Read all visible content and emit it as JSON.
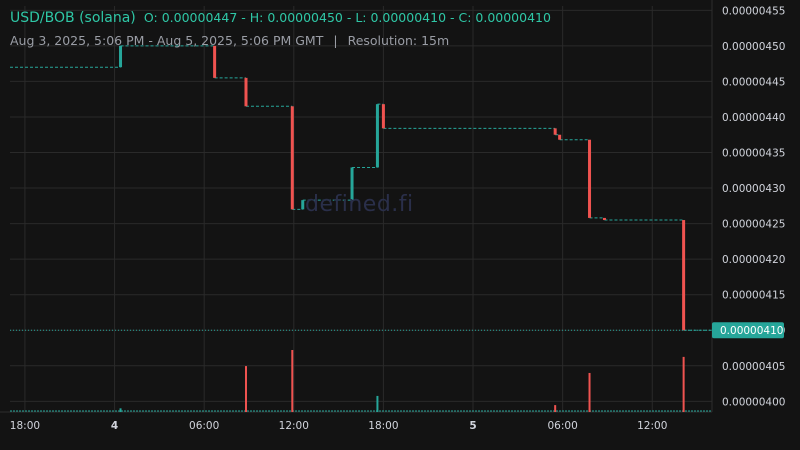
{
  "header": {
    "pair": "USD/BOB (solana)",
    "ohlc": "O: 0.00000447 - H: 0.00000450 - L: 0.00000410 - C: 0.00000410",
    "range": "Aug 3, 2025, 5:06 PM - Aug 5, 2025, 5:06 PM GMT",
    "separator": "|",
    "resolution": "Resolution: 15m"
  },
  "watermark": "defined.fi",
  "colors": {
    "background": "#131313",
    "grid": "#2a2a2a",
    "up": "#26a69a",
    "down": "#ef5350",
    "price_line": "#26a69a",
    "price_label_bg": "#26a69a",
    "axis_text": "#d1d4dc"
  },
  "chart_data": {
    "type": "candlestick",
    "x_ticks": [
      {
        "label": "18:00",
        "hour": 0,
        "bold": false
      },
      {
        "label": "4",
        "hour": 6,
        "bold": true
      },
      {
        "label": "06:00",
        "hour": 12,
        "bold": false
      },
      {
        "label": "12:00",
        "hour": 18,
        "bold": false
      },
      {
        "label": "18:00",
        "hour": 24,
        "bold": false
      },
      {
        "label": "5",
        "hour": 30,
        "bold": true
      },
      {
        "label": "06:00",
        "hour": 36,
        "bold": false
      },
      {
        "label": "12:00",
        "hour": 42,
        "bold": false
      }
    ],
    "x_range_hours": [
      -1,
      46
    ],
    "y_ticks": [
      "0.00000400",
      "0.00000405",
      "0.00000410",
      "0.00000415",
      "0.00000420",
      "0.00000425",
      "0.00000430",
      "0.00000435",
      "0.00000440",
      "0.00000445",
      "0.00000450",
      "0.00000455"
    ],
    "y_range": [
      3.985e-06,
      4.5575e-06
    ],
    "last_price": 4.1e-06,
    "last_price_label": "0.00000410",
    "steps": [
      {
        "h": -1.0,
        "open": 4.47e-06,
        "close": 4.47e-06
      },
      {
        "h": 6.4,
        "open": 4.47e-06,
        "close": 4.5e-06
      },
      {
        "h": 12.7,
        "open": 4.5e-06,
        "close": 4.455e-06
      },
      {
        "h": 14.8,
        "open": 4.455e-06,
        "close": 4.415e-06
      },
      {
        "h": 17.9,
        "open": 4.415e-06,
        "close": 4.27e-06
      },
      {
        "h": 18.6,
        "open": 4.27e-06,
        "close": 4.283e-06
      },
      {
        "h": 21.9,
        "open": 4.283e-06,
        "close": 4.329e-06
      },
      {
        "h": 23.6,
        "open": 4.329e-06,
        "close": 4.418e-06
      },
      {
        "h": 24.0,
        "open": 4.418e-06,
        "close": 4.384e-06
      },
      {
        "h": 35.5,
        "open": 4.384e-06,
        "close": 4.375e-06
      },
      {
        "h": 35.8,
        "open": 4.375e-06,
        "close": 4.368e-06
      },
      {
        "h": 37.8,
        "open": 4.368e-06,
        "close": 4.258e-06
      },
      {
        "h": 38.8,
        "open": 4.258e-06,
        "close": 4.255e-06
      },
      {
        "h": 44.1,
        "open": 4.255e-06,
        "close": 4.1e-06
      },
      {
        "h": 46.0,
        "open": 4.1e-06,
        "close": 4.1e-06
      }
    ],
    "volume": [
      {
        "h": 6.4,
        "v": 0.08,
        "dir": "up"
      },
      {
        "h": 14.8,
        "v": 1.0,
        "dir": "down"
      },
      {
        "h": 17.9,
        "v": 1.35,
        "dir": "down"
      },
      {
        "h": 23.6,
        "v": 0.35,
        "dir": "up"
      },
      {
        "h": 35.5,
        "v": 0.15,
        "dir": "down"
      },
      {
        "h": 37.8,
        "v": 0.85,
        "dir": "down"
      },
      {
        "h": 44.1,
        "v": 1.2,
        "dir": "down"
      }
    ]
  }
}
